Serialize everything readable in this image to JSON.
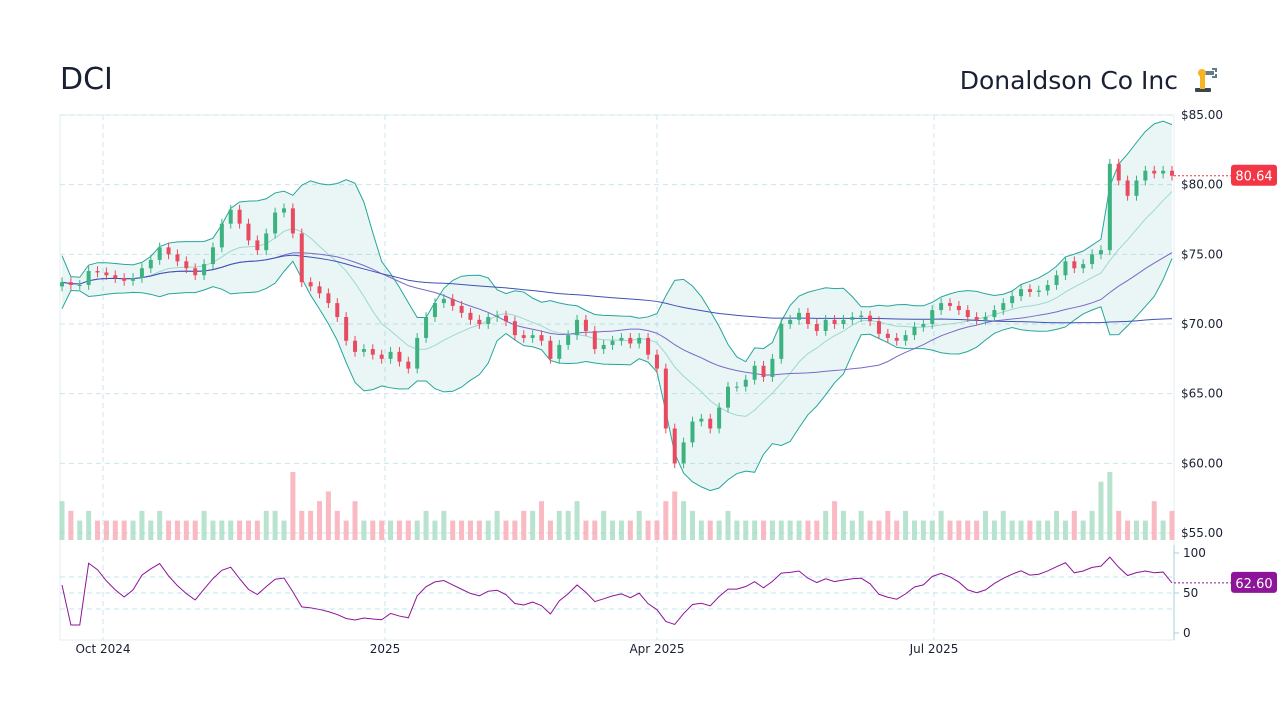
{
  "header": {
    "ticker": "DCI",
    "company": "Donaldson Co Inc",
    "logo_icon": "robot-arm-icon"
  },
  "chart_data": {
    "type": "candlestick",
    "price_axis": {
      "ticks": [
        "$85.00",
        "$80.00",
        "$75.00",
        "$70.00",
        "$65.00",
        "$60.00",
        "$55.00"
      ],
      "values": [
        85,
        80,
        75,
        70,
        65,
        60,
        55
      ],
      "range": [
        55,
        85
      ]
    },
    "x_axis": {
      "ticks": [
        "Oct 2024",
        "2025",
        "Apr 2025",
        "Jul 2025"
      ]
    },
    "last_price": "80.64",
    "last_price_color": "#f23645",
    "up_color": "#26a69a",
    "down_color": "#ef5350",
    "band_color": "#26a69a",
    "closes": [
      73.0,
      72.8,
      72.8,
      73.8,
      73.7,
      73.5,
      73.3,
      73.1,
      73.3,
      74.0,
      74.6,
      75.5,
      75.0,
      74.5,
      74.0,
      73.5,
      74.3,
      75.5,
      77.2,
      78.2,
      77.2,
      76.0,
      75.3,
      76.5,
      78.0,
      78.3,
      76.5,
      73.0,
      72.7,
      72.2,
      71.5,
      70.5,
      68.8,
      68.0,
      68.2,
      67.8,
      67.5,
      68.0,
      67.3,
      66.8,
      69.0,
      70.5,
      71.5,
      71.8,
      71.3,
      70.8,
      70.3,
      70.0,
      70.5,
      70.6,
      70.2,
      69.2,
      69.0,
      69.2,
      68.8,
      67.5,
      68.5,
      69.2,
      70.3,
      69.5,
      68.2,
      68.5,
      68.8,
      69.0,
      68.6,
      69.0,
      67.8,
      66.8,
      62.5,
      60.0,
      61.5,
      63.0,
      63.2,
      62.5,
      64.0,
      65.5,
      65.5,
      66.0,
      67.0,
      66.2,
      67.5,
      70.0,
      70.3,
      70.8,
      70.0,
      69.5,
      70.3,
      70.0,
      70.3,
      70.5,
      70.6,
      70.2,
      69.3,
      69.0,
      68.8,
      69.2,
      69.8,
      70.0,
      71.0,
      71.5,
      71.3,
      71.0,
      70.5,
      70.3,
      70.5,
      71.0,
      71.5,
      72.0,
      72.5,
      72.3,
      72.4,
      72.8,
      73.5,
      74.5,
      74.0,
      74.3,
      75.0,
      75.3,
      81.5,
      80.3,
      79.2,
      80.3,
      81.0,
      80.8,
      81.0,
      80.64
    ],
    "volumes": [
      4,
      3,
      2,
      3,
      2,
      2,
      2,
      2,
      2,
      3,
      2,
      3,
      2,
      2,
      2,
      2,
      3,
      2,
      2,
      2,
      2,
      2,
      2,
      3,
      3,
      2,
      7,
      3,
      3,
      4,
      5,
      3,
      2,
      4,
      2,
      2,
      2,
      2,
      2,
      2,
      2,
      3,
      2,
      3,
      2,
      2,
      2,
      2,
      2,
      3,
      2,
      2,
      3,
      3,
      4,
      2,
      3,
      3,
      4,
      2,
      2,
      3,
      2,
      2,
      2,
      3,
      2,
      2,
      4,
      5,
      4,
      3,
      2,
      2,
      2,
      3,
      2,
      2,
      2,
      2,
      2,
      2,
      2,
      2,
      2,
      2,
      3,
      4,
      3,
      2,
      3,
      2,
      2,
      3,
      2,
      3,
      2,
      2,
      2,
      3,
      2,
      2,
      2,
      2,
      3,
      2,
      3,
      2,
      2,
      2,
      2,
      2,
      3,
      2,
      3,
      2,
      3,
      6,
      7,
      3,
      2,
      2,
      2,
      4,
      2,
      3
    ],
    "rsi": {
      "ticks": [
        "100",
        "50",
        "0"
      ],
      "range": [
        0,
        100
      ],
      "last": "62.60",
      "color": "#8e1599"
    }
  }
}
